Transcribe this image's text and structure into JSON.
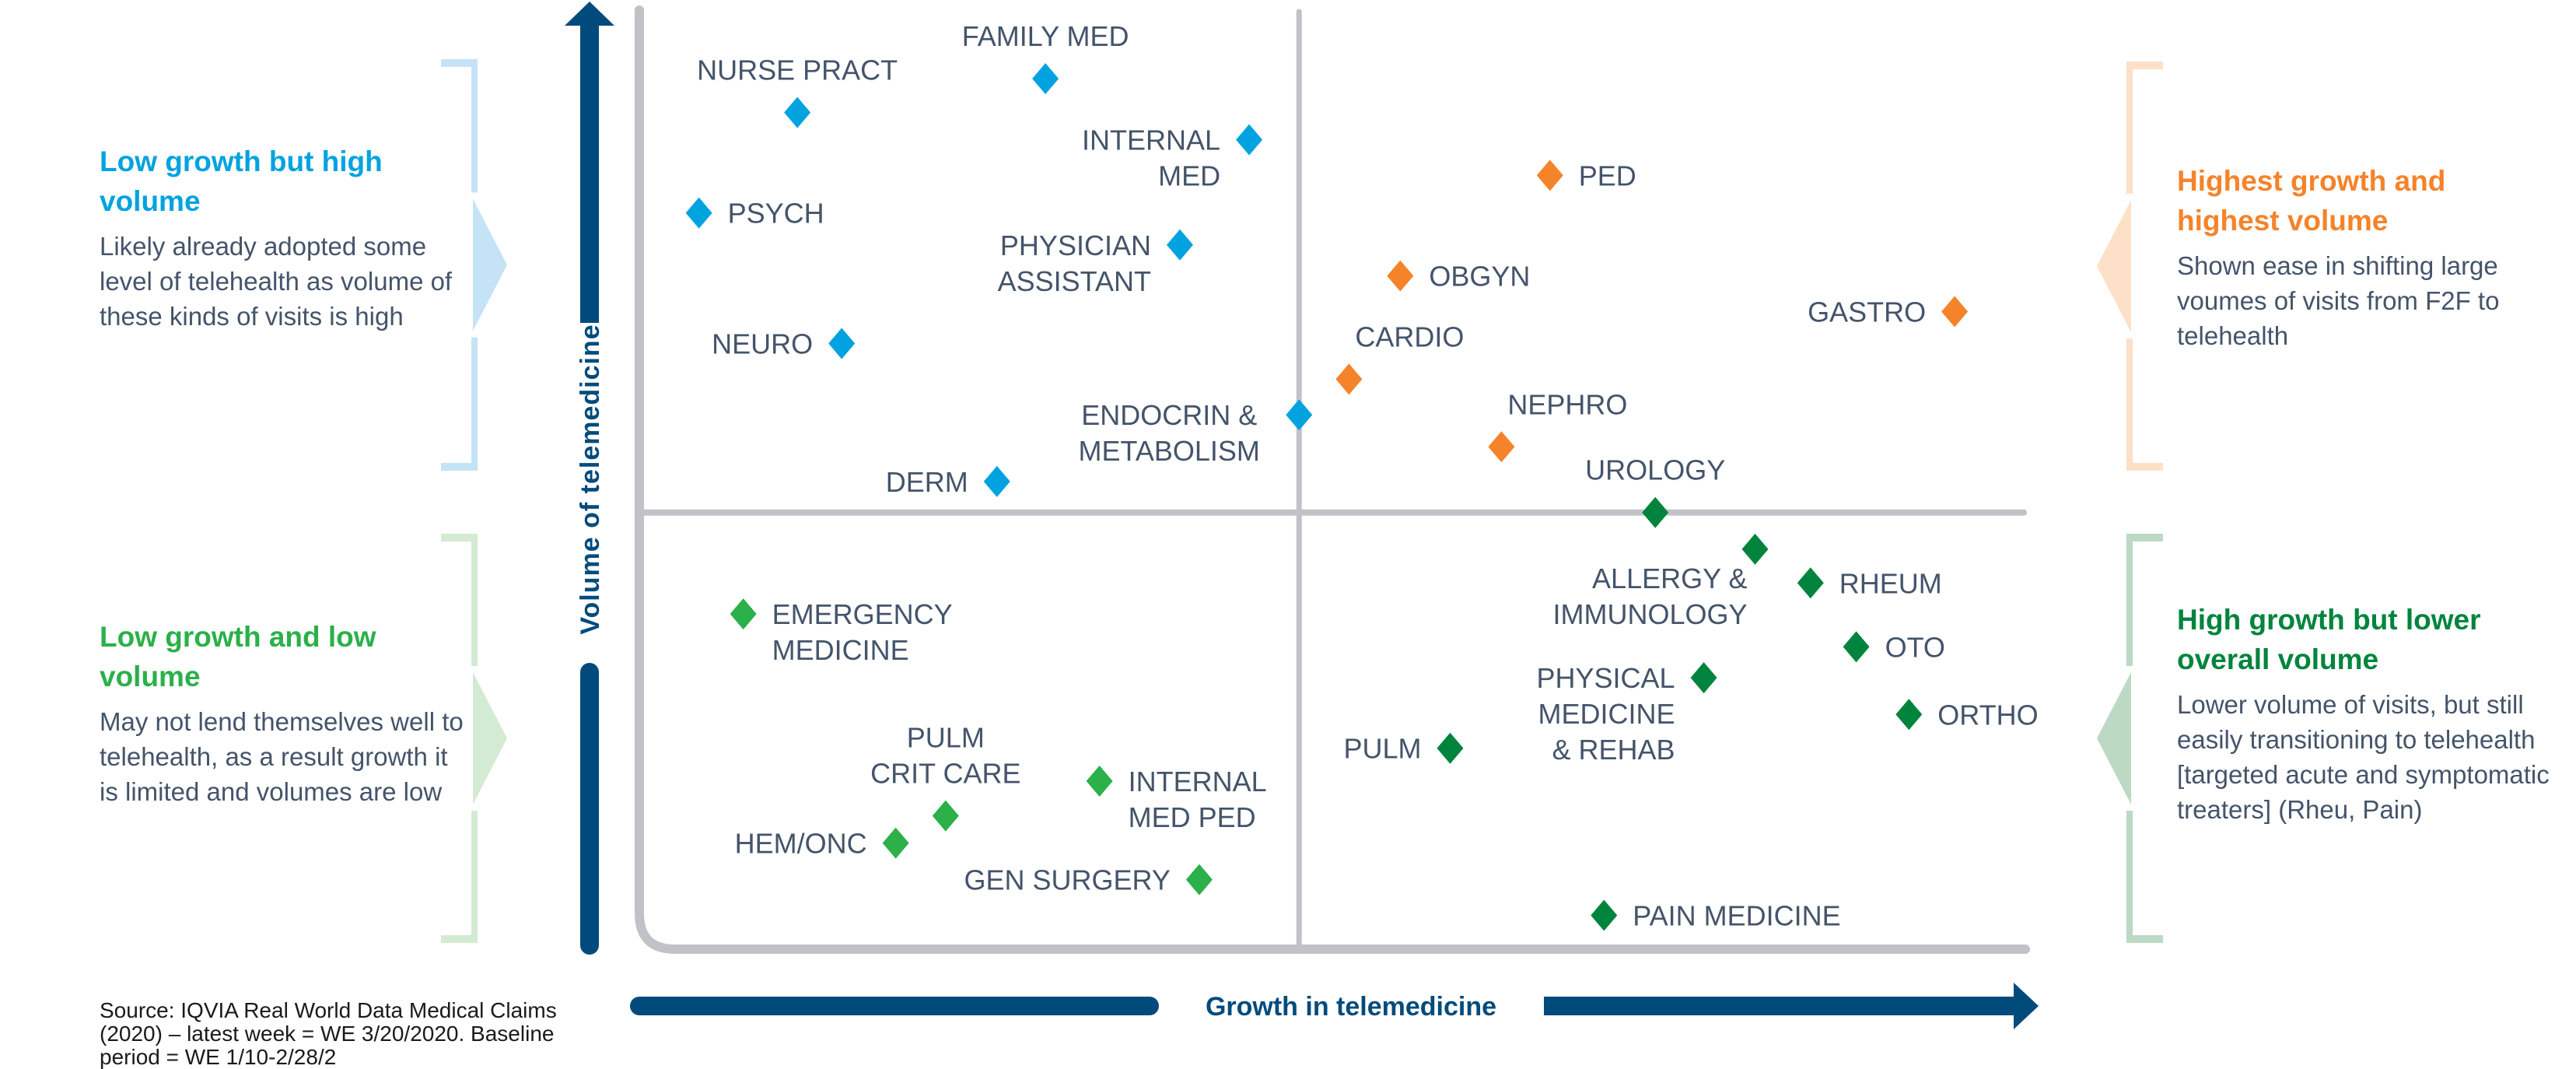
{
  "colors": {
    "axis_arrow": "#004b7c",
    "frame": "#c1c2c7",
    "label_text": "#44546a",
    "quadrant_top_left": "#00a3e0",
    "quadrant_top_right": "#f5832a",
    "quadrant_bottom_left": "#2bb04a",
    "quadrant_bottom_right": "#00843d",
    "bracket_top_left": "#c5e3f6",
    "bracket_top_right": "#fde0c8",
    "bracket_bottom_left": "#d3ebd3",
    "bracket_bottom_right": "#bcd9c3"
  },
  "panels": {
    "top_left": {
      "title": "Low growth but high volume",
      "body": "Likely already adopted some level of telehealth as volume of these kinds of visits is high"
    },
    "bottom_left": {
      "title": "Low growth and low volume",
      "body": "May not lend themselves well to telehealth, as a result growth it is limited and volumes are low"
    },
    "top_right": {
      "title": "Highest growth and highest volume",
      "body": "Shown ease in shifting large voumes of visits from F2F to telehealth"
    },
    "bottom_right": {
      "title": "High growth but lower overall volume",
      "body": "Lower volume of visits, but still easily transitioning to telehealth [targeted acute and symptomatic treaters] (Rheu, Pain)"
    }
  },
  "source_note": "Source: IQVIA Real World Data Medical Claims (2020) – latest week = WE 3/20/2020. Baseline period = WE 1/10-2/28/2",
  "chart_data": {
    "type": "scatter",
    "title": "",
    "xlabel": "Growth in telemedicine",
    "ylabel": "Volume of telemedicine",
    "xlim": [
      0,
      100
    ],
    "ylim": [
      0,
      100
    ],
    "x_divider": 47.6,
    "y_divider": 46.5,
    "grid": false,
    "tick_labels": false,
    "marker": "diamond",
    "series": [
      {
        "name": "Low growth but high volume",
        "quadrant": "top_left",
        "points": [
          {
            "label": [
              "NURSE PRACT"
            ],
            "x": 11.4,
            "y": 89.1,
            "place": "above"
          },
          {
            "label": [
              "FAMILY MED"
            ],
            "x": 29.3,
            "y": 92.7,
            "place": "above"
          },
          {
            "label": [
              "INTERNAL",
              "MED"
            ],
            "x": 44.0,
            "y": 86.2,
            "place": "left"
          },
          {
            "label": [
              "PSYCH"
            ],
            "x": 4.3,
            "y": 78.4,
            "place": "right"
          },
          {
            "label": [
              "PHYSICIAN",
              "ASSISTANT"
            ],
            "x": 39.0,
            "y": 75.0,
            "place": "left"
          },
          {
            "label": [
              "NEURO"
            ],
            "x": 14.6,
            "y": 64.5,
            "place": "left"
          },
          {
            "label": [
              "ENDOCRIN &",
              "METABOLISM"
            ],
            "x": 47.6,
            "y": 56.9,
            "place": "left-center"
          },
          {
            "label": [
              "DERM"
            ],
            "x": 25.8,
            "y": 49.8,
            "place": "left"
          }
        ]
      },
      {
        "name": "Highest growth and highest volume",
        "quadrant": "top_right",
        "points": [
          {
            "label": [
              "PED"
            ],
            "x": 65.7,
            "y": 82.4,
            "place": "right"
          },
          {
            "label": [
              "OBGYN"
            ],
            "x": 54.9,
            "y": 71.7,
            "place": "right"
          },
          {
            "label": [
              "GASTRO"
            ],
            "x": 94.9,
            "y": 67.9,
            "place": "left"
          },
          {
            "label": [
              "CARDIO"
            ],
            "x": 51.2,
            "y": 60.7,
            "place": "above-right"
          },
          {
            "label": [
              "NEPHRO"
            ],
            "x": 62.2,
            "y": 53.5,
            "place": "above-right"
          }
        ]
      },
      {
        "name": "Low growth and low volume",
        "quadrant": "bottom_left",
        "points": [
          {
            "label": [
              "EMERGENCY",
              "MEDICINE"
            ],
            "x": 7.5,
            "y": 35.7,
            "place": "right"
          },
          {
            "label": [
              "PULM",
              "CRIT CARE"
            ],
            "x": 22.1,
            "y": 14.2,
            "place": "above"
          },
          {
            "label": [
              "HEM/ONC"
            ],
            "x": 18.5,
            "y": 11.3,
            "place": "left"
          },
          {
            "label": [
              "INTERNAL",
              "MED PED"
            ],
            "x": 33.2,
            "y": 17.9,
            "place": "right"
          },
          {
            "label": [
              "GEN SURGERY"
            ],
            "x": 40.4,
            "y": 7.4,
            "place": "left"
          }
        ]
      },
      {
        "name": "High growth but lower overall volume",
        "quadrant": "bottom_right",
        "points": [
          {
            "label": [
              "UROLOGY"
            ],
            "x": 73.3,
            "y": 46.5,
            "place": "above"
          },
          {
            "label": [
              "ALLERGY &",
              "IMMUNOLOGY"
            ],
            "x": 80.5,
            "y": 42.6,
            "place": "below-left"
          },
          {
            "label": [
              "RHEUM"
            ],
            "x": 84.5,
            "y": 39.0,
            "place": "right"
          },
          {
            "label": [
              "OTO"
            ],
            "x": 87.8,
            "y": 32.2,
            "place": "right"
          },
          {
            "label": [
              "PHYSICAL",
              "MEDICINE",
              "& REHAB"
            ],
            "x": 76.8,
            "y": 28.9,
            "place": "left"
          },
          {
            "label": [
              "ORTHO"
            ],
            "x": 91.6,
            "y": 25.0,
            "place": "right"
          },
          {
            "label": [
              "PULM"
            ],
            "x": 58.5,
            "y": 21.4,
            "place": "left"
          },
          {
            "label": [
              "PAIN MEDICINE"
            ],
            "x": 69.6,
            "y": 3.6,
            "place": "right"
          }
        ]
      }
    ]
  }
}
